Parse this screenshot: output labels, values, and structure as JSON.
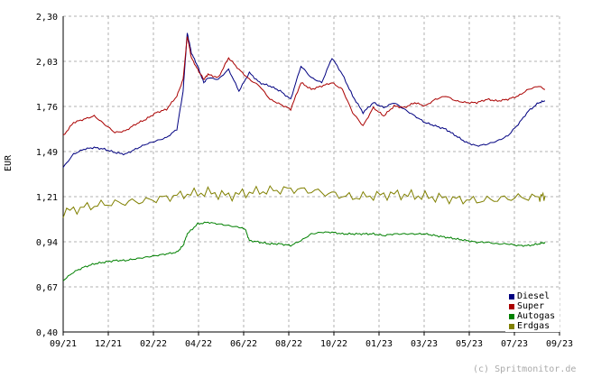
{
  "chart_data": {
    "type": "line",
    "ylabel": "EUR",
    "credit": "(c) Spritmonitor.de",
    "ylim": [
      0.4,
      2.3
    ],
    "yticks": [
      "0,40",
      "0,67",
      "0,94",
      "1,21",
      "1,49",
      "1,76",
      "2,03",
      "2,30"
    ],
    "xticks": [
      "09/21",
      "12/21",
      "02/22",
      "04/22",
      "06/22",
      "08/22",
      "10/22",
      "01/23",
      "03/23",
      "05/23",
      "07/23",
      "09/23"
    ],
    "grid": true,
    "legend_position": "bottom-right",
    "x_unit": "months since 09/21",
    "series": [
      {
        "name": "Diesel",
        "color": "#000080",
        "points": [
          [
            0,
            1.39
          ],
          [
            0.5,
            1.47
          ],
          [
            1,
            1.5
          ],
          [
            1.5,
            1.51
          ],
          [
            2,
            1.5
          ],
          [
            2.5,
            1.48
          ],
          [
            3,
            1.47
          ],
          [
            3.5,
            1.5
          ],
          [
            4,
            1.53
          ],
          [
            4.5,
            1.55
          ],
          [
            5,
            1.57
          ],
          [
            5.5,
            1.62
          ],
          [
            5.8,
            1.85
          ],
          [
            6.0,
            2.2
          ],
          [
            6.2,
            2.08
          ],
          [
            6.5,
            2.0
          ],
          [
            6.8,
            1.9
          ],
          [
            7.0,
            1.93
          ],
          [
            7.5,
            1.92
          ],
          [
            8.0,
            1.98
          ],
          [
            8.5,
            1.85
          ],
          [
            9.0,
            1.96
          ],
          [
            9.5,
            1.9
          ],
          [
            10,
            1.88
          ],
          [
            10.5,
            1.85
          ],
          [
            11.0,
            1.8
          ],
          [
            11.5,
            2.0
          ],
          [
            12.0,
            1.93
          ],
          [
            12.5,
            1.9
          ],
          [
            13.0,
            2.05
          ],
          [
            13.5,
            1.95
          ],
          [
            14.0,
            1.82
          ],
          [
            14.5,
            1.72
          ],
          [
            15.0,
            1.78
          ],
          [
            15.5,
            1.75
          ],
          [
            16.0,
            1.78
          ],
          [
            16.5,
            1.74
          ],
          [
            17.0,
            1.7
          ],
          [
            17.5,
            1.66
          ],
          [
            18.0,
            1.64
          ],
          [
            18.5,
            1.62
          ],
          [
            19.0,
            1.58
          ],
          [
            19.5,
            1.54
          ],
          [
            20.0,
            1.52
          ],
          [
            20.5,
            1.53
          ],
          [
            21.0,
            1.55
          ],
          [
            21.5,
            1.58
          ],
          [
            22.0,
            1.65
          ],
          [
            22.5,
            1.73
          ],
          [
            23.0,
            1.78
          ],
          [
            23.3,
            1.79
          ]
        ]
      },
      {
        "name": "Super",
        "color": "#aa0000",
        "points": [
          [
            0,
            1.58
          ],
          [
            0.5,
            1.66
          ],
          [
            1,
            1.68
          ],
          [
            1.5,
            1.7
          ],
          [
            2,
            1.65
          ],
          [
            2.5,
            1.6
          ],
          [
            3,
            1.61
          ],
          [
            3.5,
            1.65
          ],
          [
            4,
            1.68
          ],
          [
            4.5,
            1.72
          ],
          [
            5,
            1.74
          ],
          [
            5.5,
            1.82
          ],
          [
            5.8,
            1.92
          ],
          [
            6.0,
            2.18
          ],
          [
            6.2,
            2.05
          ],
          [
            6.5,
            1.98
          ],
          [
            6.8,
            1.92
          ],
          [
            7.0,
            1.95
          ],
          [
            7.5,
            1.93
          ],
          [
            8.0,
            2.05
          ],
          [
            8.5,
            1.98
          ],
          [
            9.0,
            1.92
          ],
          [
            9.5,
            1.88
          ],
          [
            10,
            1.8
          ],
          [
            10.5,
            1.77
          ],
          [
            11.0,
            1.74
          ],
          [
            11.5,
            1.9
          ],
          [
            12.0,
            1.86
          ],
          [
            12.5,
            1.88
          ],
          [
            13.0,
            1.9
          ],
          [
            13.5,
            1.86
          ],
          [
            14.0,
            1.72
          ],
          [
            14.5,
            1.64
          ],
          [
            15.0,
            1.75
          ],
          [
            15.5,
            1.7
          ],
          [
            16.0,
            1.76
          ],
          [
            16.5,
            1.75
          ],
          [
            17.0,
            1.78
          ],
          [
            17.5,
            1.76
          ],
          [
            18.0,
            1.8
          ],
          [
            18.5,
            1.82
          ],
          [
            19.0,
            1.79
          ],
          [
            19.5,
            1.78
          ],
          [
            20.0,
            1.78
          ],
          [
            20.5,
            1.8
          ],
          [
            21.0,
            1.79
          ],
          [
            21.5,
            1.8
          ],
          [
            22.0,
            1.82
          ],
          [
            22.5,
            1.86
          ],
          [
            23.0,
            1.88
          ],
          [
            23.3,
            1.86
          ]
        ]
      },
      {
        "name": "Autogas",
        "color": "#008000",
        "points": [
          [
            0,
            0.71
          ],
          [
            0.5,
            0.76
          ],
          [
            1,
            0.79
          ],
          [
            1.5,
            0.81
          ],
          [
            2,
            0.82
          ],
          [
            2.5,
            0.83
          ],
          [
            3,
            0.83
          ],
          [
            3.5,
            0.84
          ],
          [
            4,
            0.85
          ],
          [
            4.5,
            0.86
          ],
          [
            5,
            0.87
          ],
          [
            5.5,
            0.88
          ],
          [
            5.8,
            0.92
          ],
          [
            6.0,
            0.99
          ],
          [
            6.5,
            1.05
          ],
          [
            7.0,
            1.06
          ],
          [
            7.5,
            1.05
          ],
          [
            8.0,
            1.04
          ],
          [
            8.5,
            1.03
          ],
          [
            8.8,
            1.02
          ],
          [
            9.0,
            0.95
          ],
          [
            9.5,
            0.94
          ],
          [
            10,
            0.93
          ],
          [
            10.5,
            0.93
          ],
          [
            11.0,
            0.92
          ],
          [
            11.5,
            0.95
          ],
          [
            12.0,
            0.99
          ],
          [
            12.5,
            1.0
          ],
          [
            13.0,
            1.0
          ],
          [
            13.5,
            0.99
          ],
          [
            14.0,
            0.99
          ],
          [
            14.5,
            0.99
          ],
          [
            15.0,
            0.99
          ],
          [
            15.5,
            0.98
          ],
          [
            16.0,
            0.99
          ],
          [
            16.5,
            0.99
          ],
          [
            17.0,
            0.99
          ],
          [
            17.5,
            0.99
          ],
          [
            18.0,
            0.98
          ],
          [
            18.5,
            0.97
          ],
          [
            19.0,
            0.96
          ],
          [
            19.5,
            0.95
          ],
          [
            20.0,
            0.94
          ],
          [
            20.5,
            0.94
          ],
          [
            21.0,
            0.93
          ],
          [
            21.5,
            0.93
          ],
          [
            22.0,
            0.92
          ],
          [
            22.5,
            0.92
          ],
          [
            23.0,
            0.93
          ],
          [
            23.3,
            0.94
          ]
        ]
      },
      {
        "name": "Erdgas",
        "color": "#808000",
        "points": [
          [
            0,
            1.12
          ],
          [
            1,
            1.15
          ],
          [
            2,
            1.17
          ],
          [
            3,
            1.18
          ],
          [
            4,
            1.19
          ],
          [
            5,
            1.21
          ],
          [
            6,
            1.23
          ],
          [
            7,
            1.24
          ],
          [
            8,
            1.22
          ],
          [
            9,
            1.24
          ],
          [
            10,
            1.25
          ],
          [
            11,
            1.26
          ],
          [
            12,
            1.25
          ],
          [
            13,
            1.23
          ],
          [
            14,
            1.21
          ],
          [
            15,
            1.22
          ],
          [
            16,
            1.23
          ],
          [
            17,
            1.22
          ],
          [
            18,
            1.21
          ],
          [
            19,
            1.2
          ],
          [
            20,
            1.19
          ],
          [
            21,
            1.2
          ],
          [
            22,
            1.21
          ],
          [
            23,
            1.21
          ],
          [
            23.3,
            1.22
          ]
        ]
      }
    ]
  }
}
